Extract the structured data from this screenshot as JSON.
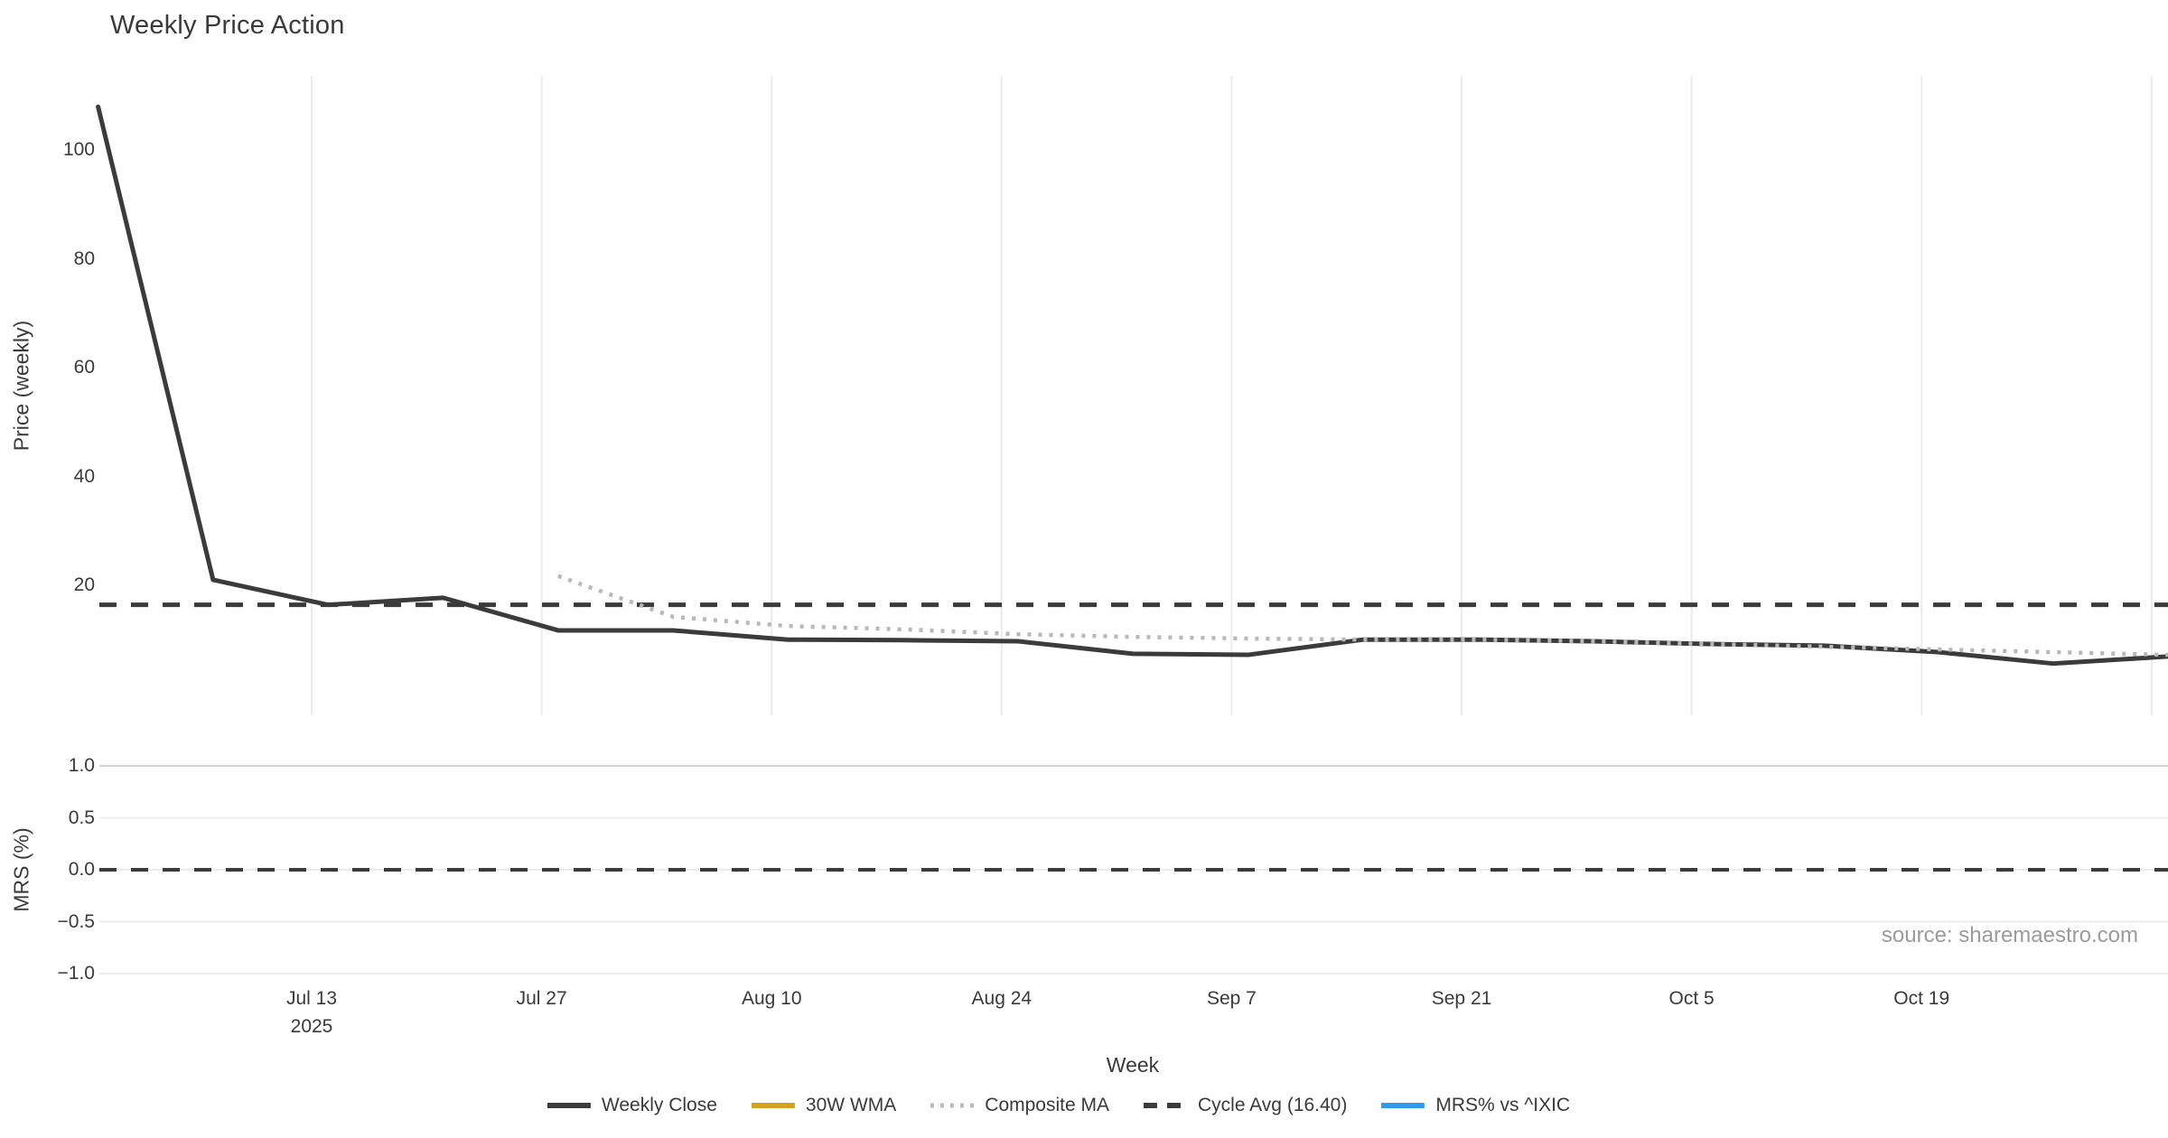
{
  "chart": {
    "title": "Weekly Price Action",
    "source": "source: sharemaestro.com"
  },
  "chart_data": {
    "type": "line",
    "x_label": "Week",
    "x_dates": [
      "2025-06-30",
      "2025-07-07",
      "2025-07-14",
      "2025-07-21",
      "2025-07-28",
      "2025-08-04",
      "2025-08-11",
      "2025-08-18",
      "2025-08-25",
      "2025-09-01",
      "2025-09-08",
      "2025-09-15",
      "2025-09-22",
      "2025-09-29",
      "2025-10-06",
      "2025-10-13",
      "2025-10-20",
      "2025-10-27",
      "2025-11-03"
    ],
    "x_ticks": [
      {
        "label": "Jul 13",
        "sub": "2025",
        "days": 13
      },
      {
        "label": "Jul 27",
        "sub": "",
        "days": 27
      },
      {
        "label": "Aug 10",
        "sub": "",
        "days": 41
      },
      {
        "label": "Aug 24",
        "sub": "",
        "days": 55
      },
      {
        "label": "Sep 7",
        "sub": "",
        "days": 69
      },
      {
        "label": "Sep 21",
        "sub": "",
        "days": 83
      },
      {
        "label": "Oct 5",
        "sub": "",
        "days": 97
      },
      {
        "label": "Oct 19",
        "sub": "",
        "days": 111
      },
      {
        "label": "",
        "sub": "",
        "days": 125
      }
    ],
    "price_panel": {
      "ylabel": "Price (weekly)",
      "yticks": [
        20,
        40,
        60,
        80,
        100
      ],
      "cycle_avg": 16.4,
      "series": [
        {
          "name": "Weekly Close",
          "style": "solid",
          "color": "#3b3b3b",
          "values": [
            108,
            21,
            16.4,
            17.7,
            11.7,
            11.7,
            10.0,
            9.9,
            9.7,
            7.4,
            7.2,
            10.0,
            10.0,
            9.7,
            9.2,
            8.9,
            7.7,
            5.6,
            6.9
          ]
        },
        {
          "name": "Composite MA",
          "style": "dotted",
          "color": "#b8b8b8",
          "values": [
            null,
            null,
            null,
            null,
            21.7,
            14.2,
            12.5,
            11.9,
            11.0,
            10.5,
            10.2,
            10.0,
            10.0,
            9.7,
            9.2,
            8.7,
            8.2,
            7.7,
            7.2
          ]
        },
        {
          "name": "30W WMA",
          "style": "solid",
          "color": "#d2a11e",
          "values": []
        }
      ]
    },
    "mrs_panel": {
      "ylabel": "MRS (%)",
      "yticks": [
        1.0,
        0.5,
        0.0,
        -0.5,
        -1.0
      ],
      "zero_line": 0.0,
      "series": [
        {
          "name": "MRS% vs ^IXIC",
          "style": "solid",
          "color": "#2d9cf0",
          "values": []
        }
      ]
    },
    "legend": [
      {
        "label": "Weekly Close",
        "style": "solid",
        "color": "#3b3b3b"
      },
      {
        "label": "30W WMA",
        "style": "solid",
        "color": "#d2a11e"
      },
      {
        "label": "Composite MA",
        "style": "dotted",
        "color": "#b8b8b8"
      },
      {
        "label": "Cycle Avg (16.40)",
        "style": "dashed",
        "color": "#3b3b3b"
      },
      {
        "label": "MRS% vs ^IXIC",
        "style": "solid",
        "color": "#2d9cf0"
      }
    ]
  }
}
